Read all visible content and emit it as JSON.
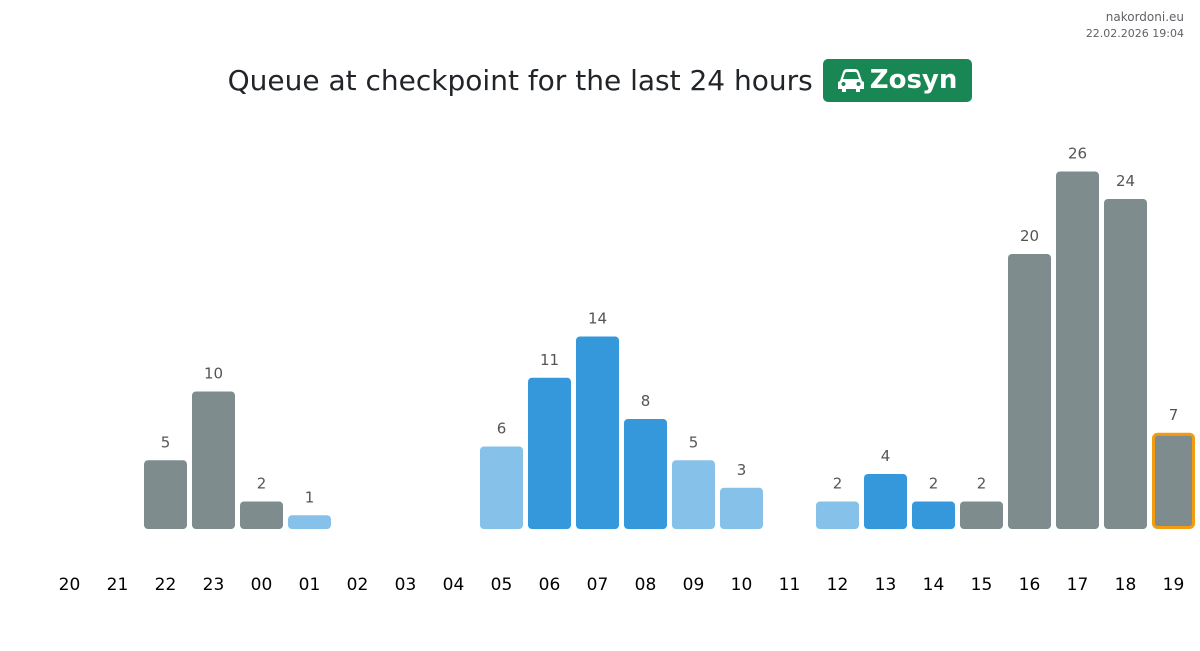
{
  "source": {
    "site": "nakordoni.eu",
    "timestamp": "22.02.2026 19:04"
  },
  "header": {
    "title": "Queue at checkpoint for the last 24 hours",
    "badge_label": "Zosyn",
    "badge_icon": "car-icon",
    "badge_color": "#198754"
  },
  "colors": {
    "gray": "#7f8c8d",
    "blue": "#3498db",
    "light_blue": "#85c1e9",
    "highlight_border": "#f39c12",
    "label_text": "#555555",
    "axis_text": "#000000"
  },
  "chart_data": {
    "type": "bar",
    "title": "Queue at checkpoint for the last 24 hours",
    "xlabel": "",
    "ylabel": "",
    "ylim": [
      0,
      28
    ],
    "grid": false,
    "legend": "none",
    "categories": [
      "20",
      "21",
      "22",
      "23",
      "00",
      "01",
      "02",
      "03",
      "04",
      "05",
      "06",
      "07",
      "08",
      "09",
      "10",
      "11",
      "12",
      "13",
      "14",
      "15",
      "16",
      "17",
      "18",
      "19"
    ],
    "values": [
      null,
      null,
      5,
      10,
      2,
      1,
      null,
      null,
      null,
      6,
      11,
      14,
      8,
      5,
      3,
      null,
      2,
      4,
      2,
      2,
      20,
      26,
      24,
      7
    ],
    "bar_colors": [
      "gray",
      "gray",
      "gray",
      "gray",
      "gray",
      "light_blue",
      "gray",
      "gray",
      "gray",
      "light_blue",
      "blue",
      "blue",
      "blue",
      "light_blue",
      "light_blue",
      "gray",
      "light_blue",
      "blue",
      "blue",
      "gray",
      "gray",
      "gray",
      "gray",
      "gray"
    ],
    "highlighted": [
      "19"
    ]
  }
}
